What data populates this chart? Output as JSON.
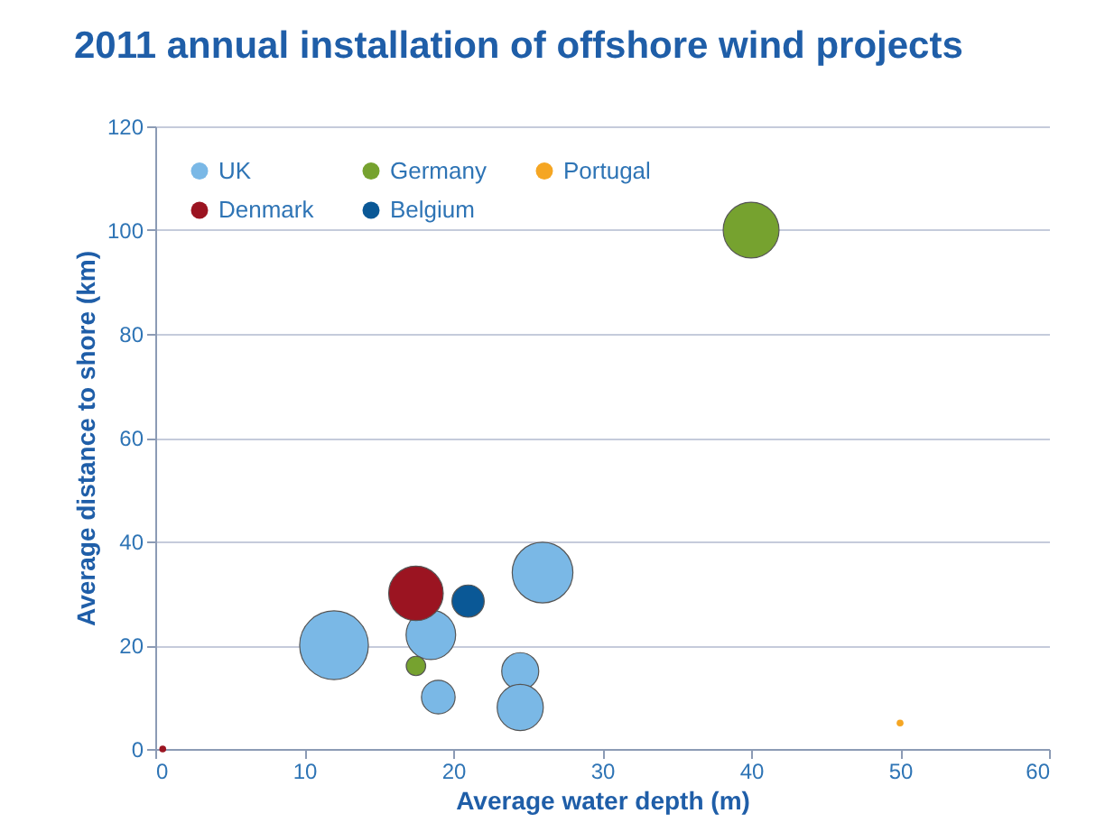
{
  "chart_data": {
    "type": "bubble",
    "title": "2011 annual installation of offshore wind projects",
    "xlabel": "Average water depth (m)",
    "ylabel": "Average distance to shore (km)",
    "xlim": [
      0,
      60
    ],
    "xticks": [
      0,
      10,
      20,
      30,
      40,
      50,
      60
    ],
    "ylim": [
      0,
      120
    ],
    "yticks": [
      0,
      20,
      40,
      60,
      80,
      100,
      120
    ],
    "grid": "y",
    "legend": "top left",
    "series": [
      {
        "name": "UK",
        "color": "#7ab8e6",
        "x": [
          12,
          26,
          18.5,
          24.5,
          24.5,
          19
        ],
        "values": [
          20,
          34,
          22,
          15,
          8,
          10
        ],
        "sizes": [
          1,
          0.78,
          0.52,
          0.29,
          0.45,
          0.24
        ]
      },
      {
        "name": "Germany",
        "color": "#76a22f",
        "x": [
          40,
          17.5
        ],
        "values": [
          100,
          16
        ],
        "sizes": [
          0.66,
          0.08
        ]
      },
      {
        "name": "Portugal",
        "color": "#f5a623",
        "x": [
          50
        ],
        "values": [
          5
        ],
        "sizes": [
          0.01
        ]
      },
      {
        "name": "Denmark",
        "color": "#9b1421",
        "x": [
          17.5,
          0.5
        ],
        "values": [
          30,
          0
        ],
        "sizes": [
          0.63,
          0.01
        ]
      },
      {
        "name": "Belgium",
        "color": "#0a5896",
        "x": [
          21
        ],
        "values": [
          28.5
        ],
        "sizes": [
          0.22
        ]
      }
    ]
  }
}
